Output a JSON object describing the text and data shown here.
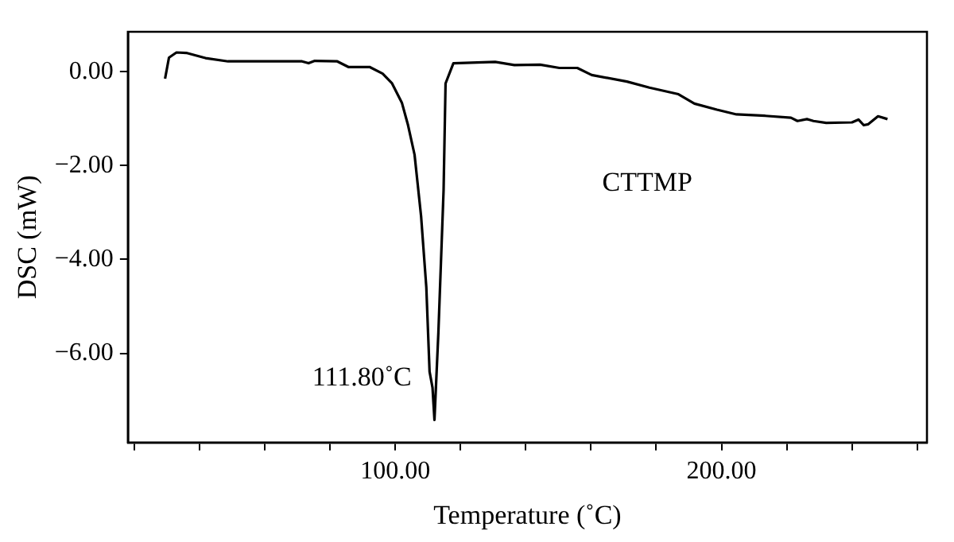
{
  "chart_data": {
    "type": "line",
    "xlabel": "Temperature (˚C)",
    "ylabel": "DSC (mW)",
    "annotations": [
      {
        "text": "111.80˚C",
        "x": 111.8,
        "y": -7.42
      },
      "CTTMP"
    ],
    "x": [
      29.4,
      30.6,
      32.9,
      35.9,
      41.8,
      48.7,
      63.5,
      71.4,
      73.4,
      75.3,
      82.2,
      85.6,
      92.1,
      96.1,
      99.0,
      102.0,
      103.9,
      105.9,
      107.9,
      109.5,
      110.5,
      111.4,
      112.0,
      113.2,
      114.8,
      115.4,
      117.8,
      130.6,
      136.5,
      144.4,
      150.3,
      155.8,
      160.2,
      171.0,
      177.9,
      186.8,
      191.7,
      198.6,
      204.6,
      213.4,
      221.3,
      223.3,
      226.2,
      228.2,
      232.1,
      240.0,
      242.0,
      243.6,
      245.0,
      248.0,
      250.9
    ],
    "series": [
      {
        "color": "#000000",
        "values": [
          -0.15,
          0.3,
          0.41,
          0.4,
          0.29,
          0.22,
          0.22,
          0.22,
          0.18,
          0.23,
          0.22,
          0.1,
          0.1,
          -0.04,
          -0.25,
          -0.66,
          -1.14,
          -1.77,
          -3.08,
          -4.59,
          -6.39,
          -6.73,
          -7.42,
          -5.56,
          -2.52,
          -0.25,
          0.18,
          0.21,
          0.14,
          0.15,
          0.08,
          0.08,
          -0.07,
          -0.21,
          -0.34,
          -0.48,
          -0.68,
          -0.81,
          -0.91,
          -0.94,
          -0.98,
          -1.05,
          -1.01,
          -1.05,
          -1.09,
          -1.08,
          -1.02,
          -1.14,
          -1.12,
          -0.95,
          -1.01
        ]
      }
    ],
    "xlim": [
      18,
      263
    ],
    "xticks": [
      {
        "value": 20,
        "label": null
      },
      {
        "value": 40,
        "label": null
      },
      {
        "value": 60,
        "label": null
      },
      {
        "value": 80,
        "label": null
      },
      {
        "value": 100,
        "label": "100.00"
      },
      {
        "value": 120,
        "label": null
      },
      {
        "value": 140,
        "label": null
      },
      {
        "value": 160,
        "label": null
      },
      {
        "value": 180,
        "label": null
      },
      {
        "value": 200,
        "label": "200.00"
      },
      {
        "value": 220,
        "label": null
      },
      {
        "value": 240,
        "label": null
      },
      {
        "value": 260,
        "label": null
      }
    ],
    "ylim": [
      -7.9,
      0.85
    ],
    "yticks": [
      {
        "value": -6,
        "label": "−6.00"
      },
      {
        "value": -4,
        "label": "−4.00"
      },
      {
        "value": -2,
        "label": "−2.00"
      },
      {
        "value": 0,
        "label": "0.00"
      }
    ],
    "grid": false,
    "legend": false
  }
}
